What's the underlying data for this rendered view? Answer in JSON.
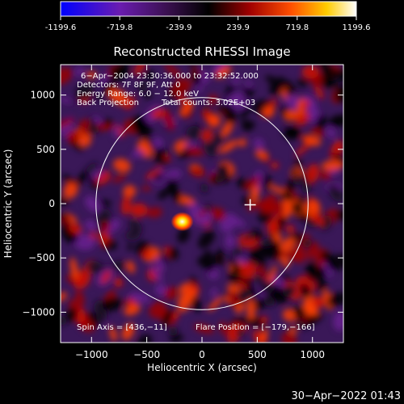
{
  "colorbar": {
    "ticks": [
      "-1199.6",
      "-719.8",
      "-239.9",
      "239.9",
      "719.8",
      "1199.6"
    ],
    "range": [
      -1199.6,
      1199.6
    ],
    "colors": [
      "#0000ff",
      "#7a1fa0",
      "#000000",
      "#c00000",
      "#ff6000",
      "#ffd000",
      "#ffffff"
    ]
  },
  "chart_data": {
    "type": "heatmap",
    "title": "Reconstructed RHESSI Image",
    "xlabel": "Heliocentric X (arcsec)",
    "ylabel": "Heliocentric Y (arcsec)",
    "xlim": [
      -1280,
      1280
    ],
    "ylim": [
      -1280,
      1280
    ],
    "xticks": [
      -1000,
      -500,
      0,
      500,
      1000
    ],
    "yticks": [
      -1000,
      -500,
      0,
      500,
      1000
    ],
    "xtick_labels": [
      "−1000",
      "−500",
      "0",
      "500",
      "1000"
    ],
    "ytick_labels": [
      "−1000",
      "−500",
      "0",
      "500",
      "1000"
    ],
    "annotations": [
      "6−Apr−2004 23:30:36.000 to 23:32:52.000",
      "Detectors: 7F 8F 9F, Att 0",
      "Energy Range: 6.0 − 12.0 keV",
      "Back Projection",
      "Total counts: 3.02E+03"
    ],
    "footer_left": "Spin Axis = [436,−11]",
    "footer_right": "Flare Position = [−179,−166]",
    "solar_limb_radius": 960,
    "spin_axis": [
      436,
      -11
    ],
    "bright_source": [
      -179,
      -166
    ]
  },
  "timestamp": "30−Apr−2022 01:43"
}
